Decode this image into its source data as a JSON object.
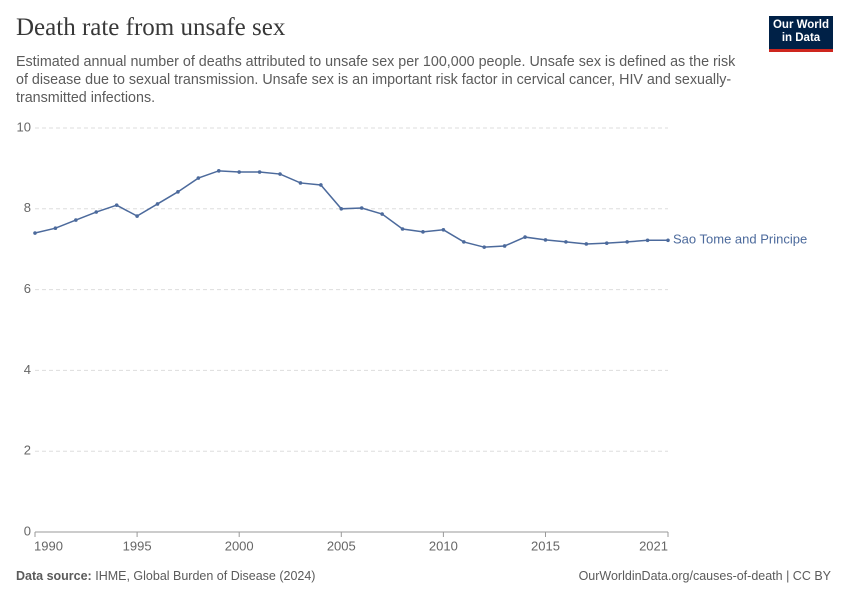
{
  "header": {
    "title": "Death rate from unsafe sex",
    "subtitle": "Estimated annual number of deaths attributed to unsafe sex per 100,000 people. Unsafe sex is defined as the risk of disease due to sexual transmission. Unsafe sex is an important risk factor in cervical cancer, HIV and sexually-transmitted infections.",
    "logo": [
      "Our World",
      "in Data"
    ]
  },
  "chart_data": {
    "type": "line",
    "x": [
      1990,
      1991,
      1992,
      1993,
      1994,
      1995,
      1996,
      1997,
      1998,
      1999,
      2000,
      2001,
      2002,
      2003,
      2004,
      2005,
      2006,
      2007,
      2008,
      2009,
      2010,
      2011,
      2012,
      2013,
      2014,
      2015,
      2016,
      2017,
      2018,
      2019,
      2020,
      2021
    ],
    "series": [
      {
        "name": "Sao Tome and Principe",
        "color": "#4c6a9c",
        "values": [
          7.4,
          7.52,
          7.72,
          7.92,
          8.09,
          7.82,
          8.12,
          8.42,
          8.76,
          8.94,
          8.91,
          8.91,
          8.86,
          8.64,
          8.59,
          8.0,
          8.02,
          7.87,
          7.5,
          7.43,
          7.48,
          7.18,
          7.05,
          7.08,
          7.3,
          7.23,
          7.18,
          7.13,
          7.15,
          7.18,
          7.22,
          7.22
        ]
      }
    ],
    "xlim": [
      1990,
      2021
    ],
    "xticks": [
      1990,
      1995,
      2000,
      2005,
      2010,
      2015,
      2021
    ],
    "ylim": [
      0,
      10
    ],
    "yticks": [
      0,
      2,
      4,
      6,
      8,
      10
    ],
    "grid": true
  },
  "footer": {
    "source_label": "Data source:",
    "source": "IHME, Global Burden of Disease (2024)",
    "url": "OurWorldinData.org/causes-of-death | CC BY"
  }
}
